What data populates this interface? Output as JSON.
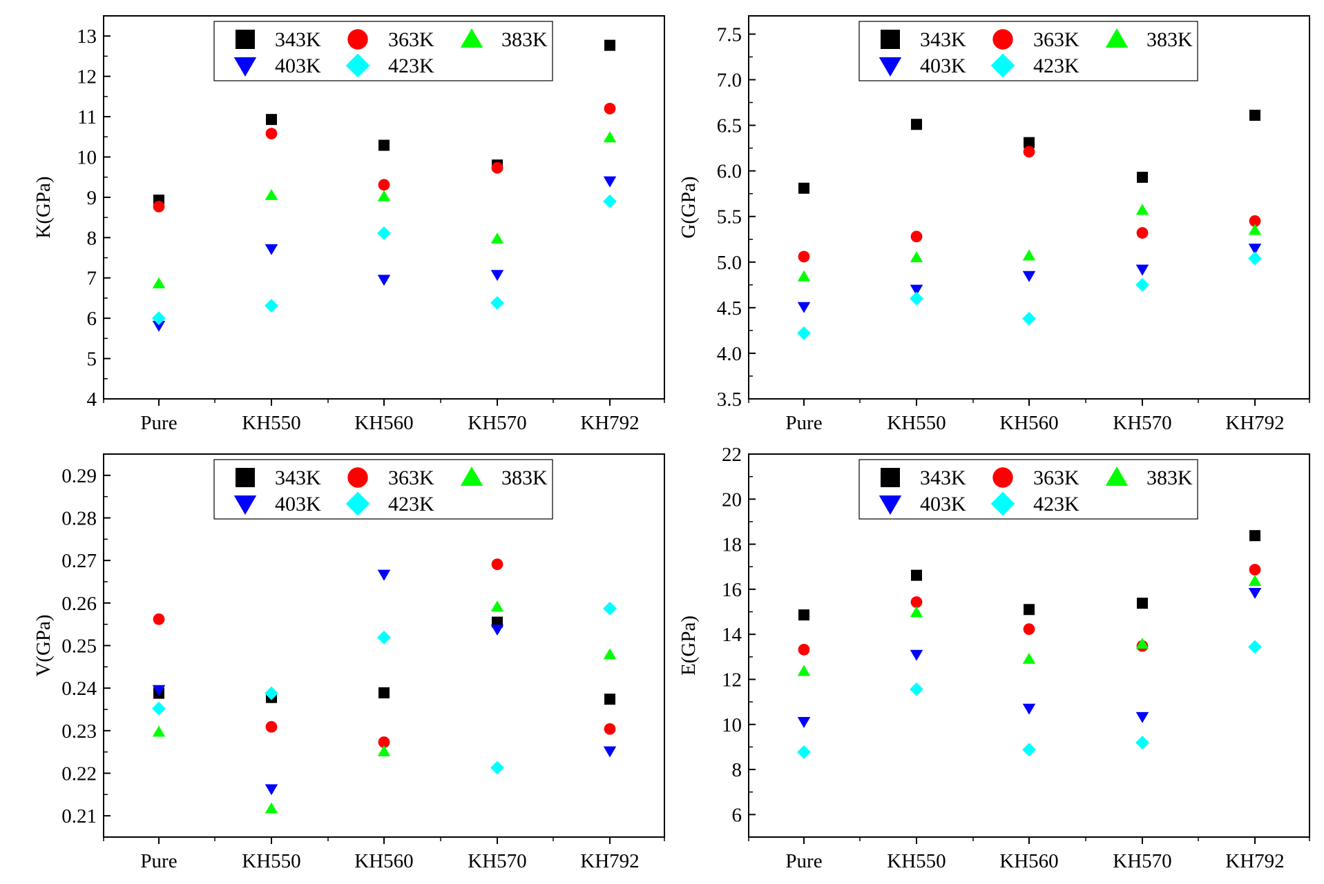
{
  "chart_data": [
    {
      "type": "scatter",
      "title": "",
      "xlabel": "",
      "ylabel": "K(GPa)",
      "categories": [
        "Pure",
        "KH550",
        "KH560",
        "KH570",
        "KH792"
      ],
      "ylim": [
        4,
        13.5
      ],
      "yticks": [
        4,
        5,
        6,
        7,
        8,
        9,
        10,
        11,
        12,
        13
      ],
      "legend_placement": "top-center",
      "series": [
        {
          "name": "343K",
          "marker": "square",
          "color": "#000000",
          "values": [
            8.93,
            10.93,
            10.29,
            9.8,
            12.77
          ]
        },
        {
          "name": "363K",
          "marker": "circle",
          "color": "#ff0000",
          "values": [
            8.77,
            10.58,
            9.31,
            9.73,
            11.2
          ]
        },
        {
          "name": "383K",
          "marker": "triangle-up",
          "color": "#00ff00",
          "values": [
            6.86,
            9.05,
            9.02,
            7.97,
            10.48
          ]
        },
        {
          "name": "403K",
          "marker": "triangle-down",
          "color": "#0000ff",
          "values": [
            5.82,
            7.72,
            6.96,
            7.08,
            9.4
          ]
        },
        {
          "name": "423K",
          "marker": "diamond",
          "color": "#00ffff",
          "values": [
            6.0,
            6.31,
            8.11,
            6.38,
            8.9
          ]
        }
      ]
    },
    {
      "type": "scatter",
      "title": "",
      "xlabel": "",
      "ylabel": "G(GPa)",
      "categories": [
        "Pure",
        "KH550",
        "KH560",
        "KH570",
        "KH792"
      ],
      "ylim": [
        3.5,
        7.7
      ],
      "yticks": [
        "3.5",
        "4.0",
        "4.5",
        "5.0",
        "5.5",
        "6.0",
        "6.5",
        "7.0",
        "7.5"
      ],
      "legend_placement": "top-center",
      "series": [
        {
          "name": "343K",
          "marker": "square",
          "color": "#000000",
          "values": [
            5.81,
            6.51,
            6.31,
            5.93,
            6.61
          ]
        },
        {
          "name": "363K",
          "marker": "circle",
          "color": "#ff0000",
          "values": [
            5.06,
            5.28,
            6.21,
            5.32,
            5.45
          ]
        },
        {
          "name": "383K",
          "marker": "triangle-up",
          "color": "#00ff00",
          "values": [
            4.84,
            5.05,
            5.07,
            5.57,
            5.35
          ]
        },
        {
          "name": "403K",
          "marker": "triangle-down",
          "color": "#0000ff",
          "values": [
            4.51,
            4.7,
            4.85,
            4.92,
            5.15
          ]
        },
        {
          "name": "423K",
          "marker": "diamond",
          "color": "#00ffff",
          "values": [
            4.22,
            4.6,
            4.38,
            4.75,
            5.04
          ]
        }
      ]
    },
    {
      "type": "scatter",
      "title": "",
      "xlabel": "",
      "ylabel": "V(GPa)",
      "categories": [
        "Pure",
        "KH550",
        "KH560",
        "KH570",
        "KH792"
      ],
      "ylim": [
        0.205,
        0.295
      ],
      "yticks": [
        "0.21",
        "0.22",
        "0.23",
        "0.24",
        "0.25",
        "0.26",
        "0.27",
        "0.28",
        "0.29"
      ],
      "legend_placement": "top-center",
      "series": [
        {
          "name": "343K",
          "marker": "square",
          "color": "#000000",
          "values": [
            0.2388,
            0.2378,
            0.2389,
            0.2555,
            0.2374
          ]
        },
        {
          "name": "363K",
          "marker": "circle",
          "color": "#ff0000",
          "values": [
            0.2562,
            0.2309,
            0.2273,
            0.2691,
            0.2304
          ]
        },
        {
          "name": "383K",
          "marker": "triangle-up",
          "color": "#00ff00",
          "values": [
            0.2297,
            0.2117,
            0.2251,
            0.2591,
            0.2479
          ]
        },
        {
          "name": "403K",
          "marker": "triangle-down",
          "color": "#0000ff",
          "values": [
            0.2396,
            0.2163,
            0.2667,
            0.2538,
            0.2252
          ]
        },
        {
          "name": "423K",
          "marker": "diamond",
          "color": "#00ffff",
          "values": [
            0.2352,
            0.2388,
            0.2519,
            0.2213,
            0.2587
          ]
        }
      ]
    },
    {
      "type": "scatter",
      "title": "",
      "xlabel": "",
      "ylabel": "E(GPa)",
      "categories": [
        "Pure",
        "KH550",
        "KH560",
        "KH570",
        "KH792"
      ],
      "ylim": [
        5,
        22
      ],
      "yticks": [
        6,
        8,
        10,
        12,
        14,
        16,
        18,
        20,
        22
      ],
      "legend_placement": "top-center",
      "series": [
        {
          "name": "343K",
          "marker": "square",
          "color": "#000000",
          "values": [
            14.86,
            16.62,
            15.1,
            15.38,
            18.38
          ]
        },
        {
          "name": "363K",
          "marker": "circle",
          "color": "#ff0000",
          "values": [
            13.32,
            15.43,
            14.23,
            13.48,
            16.87
          ]
        },
        {
          "name": "383K",
          "marker": "triangle-up",
          "color": "#00ff00",
          "values": [
            12.36,
            14.97,
            12.9,
            13.57,
            16.36
          ]
        },
        {
          "name": "403K",
          "marker": "triangle-down",
          "color": "#0000ff",
          "values": [
            10.12,
            13.1,
            10.71,
            10.34,
            15.85
          ]
        },
        {
          "name": "423K",
          "marker": "diamond",
          "color": "#00ffff",
          "values": [
            8.77,
            11.56,
            8.88,
            9.19,
            13.44
          ]
        }
      ]
    }
  ]
}
